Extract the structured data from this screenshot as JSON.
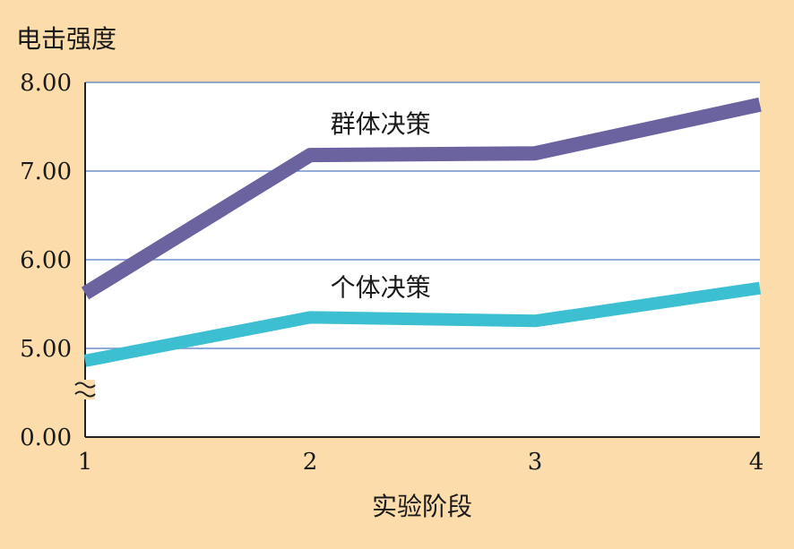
{
  "chart_data": {
    "type": "line",
    "ylabel": "电击强度",
    "xlabel": "实验阶段",
    "x": [
      1,
      2,
      3,
      4
    ],
    "yticks": [
      "0.00",
      "5.00",
      "6.00",
      "7.00",
      "8.00"
    ],
    "axis_break": true,
    "grid": true,
    "series": [
      {
        "name": "群体决策",
        "values": [
          5.62,
          7.18,
          7.2,
          7.75
        ],
        "color": "#6b63a0"
      },
      {
        "name": "个体决策",
        "values": [
          4.86,
          5.35,
          5.31,
          5.68
        ],
        "color": "#3bbfd1"
      }
    ]
  },
  "colors": {
    "background": "#fbdcaa",
    "plot_area": "#ffffff",
    "gridline": "#6f8fc8"
  }
}
